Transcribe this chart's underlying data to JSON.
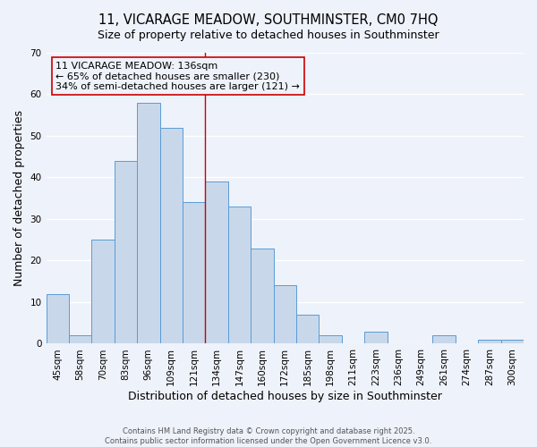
{
  "title": "11, VICARAGE MEADOW, SOUTHMINSTER, CM0 7HQ",
  "subtitle": "Size of property relative to detached houses in Southminster",
  "xlabel": "Distribution of detached houses by size in Southminster",
  "ylabel": "Number of detached properties",
  "bar_labels": [
    "45sqm",
    "58sqm",
    "70sqm",
    "83sqm",
    "96sqm",
    "109sqm",
    "121sqm",
    "134sqm",
    "147sqm",
    "160sqm",
    "172sqm",
    "185sqm",
    "198sqm",
    "211sqm",
    "223sqm",
    "236sqm",
    "249sqm",
    "261sqm",
    "274sqm",
    "287sqm",
    "300sqm"
  ],
  "bar_values": [
    12,
    2,
    25,
    44,
    58,
    52,
    34,
    39,
    33,
    23,
    14,
    7,
    2,
    0,
    3,
    0,
    0,
    2,
    0,
    1,
    1
  ],
  "bar_color": "#c8d8ea",
  "bar_edgecolor": "#5b9bd5",
  "vline_color": "#cc0000",
  "ylim": [
    0,
    70
  ],
  "yticks": [
    0,
    10,
    20,
    30,
    40,
    50,
    60,
    70
  ],
  "annotation_title": "11 VICARAGE MEADOW: 136sqm",
  "annotation_line1": "← 65% of detached houses are smaller (230)",
  "annotation_line2": "34% of semi-detached houses are larger (121) →",
  "annotation_box_edgecolor": "#cc0000",
  "background_color": "#eef2fa",
  "grid_color": "#ffffff",
  "footer1": "Contains HM Land Registry data © Crown copyright and database right 2025.",
  "footer2": "Contains public sector information licensed under the Open Government Licence v3.0.",
  "title_fontsize": 10.5,
  "axis_label_fontsize": 9,
  "tick_fontsize": 7.5,
  "annotation_fontsize": 8
}
